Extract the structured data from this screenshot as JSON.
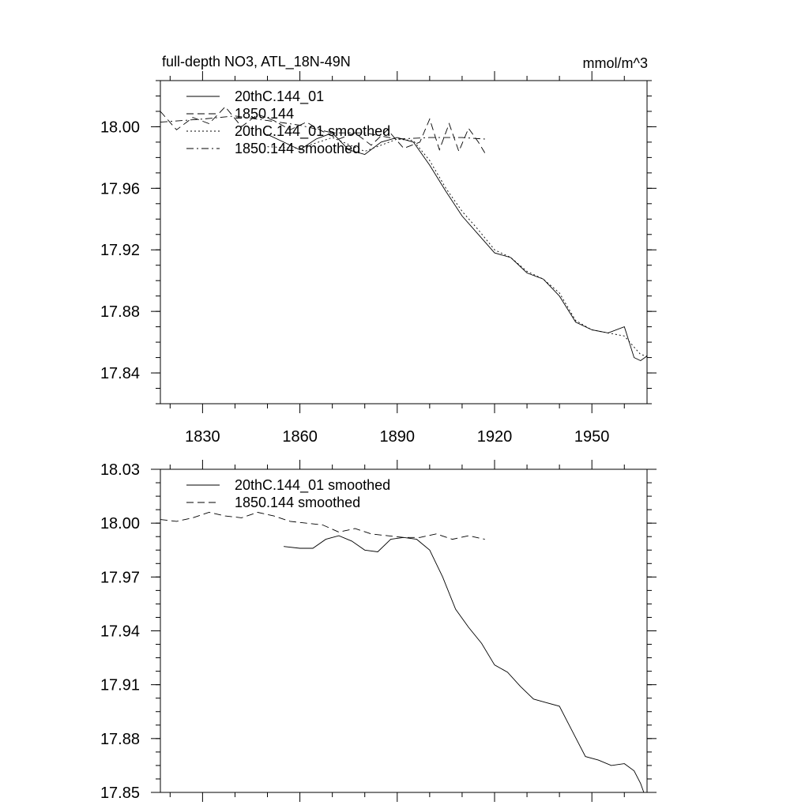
{
  "chart_data": [
    {
      "type": "line",
      "title": "full-depth NO3, ATL_18N-49N",
      "units": "mmol/m^3",
      "xlim": [
        1817,
        1967
      ],
      "ylim": [
        17.82,
        18.03
      ],
      "xticks": [
        1830,
        1860,
        1890,
        1920,
        1950
      ],
      "xtick_labels": [
        "1830",
        "1860",
        "1890",
        "1920",
        "1950"
      ],
      "yticks": [
        17.84,
        17.88,
        17.92,
        17.96,
        18.0
      ],
      "ytick_labels": [
        "17.84",
        "17.88",
        "17.92",
        "17.96",
        "18.00"
      ],
      "legend_position": "top-left",
      "series": [
        {
          "name": "20thC.144_01",
          "style": "solid",
          "x": [
            1850,
            1855,
            1860,
            1865,
            1870,
            1875,
            1880,
            1885,
            1890,
            1895,
            1900,
            1905,
            1910,
            1915,
            1920,
            1925,
            1930,
            1935,
            1940,
            1945,
            1950,
            1955,
            1960,
            1963,
            1965,
            1967
          ],
          "values": [
            17.995,
            17.99,
            17.985,
            17.992,
            17.996,
            17.985,
            17.982,
            17.99,
            17.993,
            17.99,
            17.975,
            17.958,
            17.942,
            17.93,
            17.918,
            17.915,
            17.905,
            17.901,
            17.89,
            17.873,
            17.868,
            17.866,
            17.87,
            17.85,
            17.848,
            17.851
          ]
        },
        {
          "name": "1850.144",
          "style": "dashed",
          "x": [
            1817,
            1822,
            1827,
            1832,
            1837,
            1842,
            1847,
            1852,
            1857,
            1862,
            1867,
            1872,
            1877,
            1882,
            1887,
            1892,
            1897,
            1900,
            1903,
            1906,
            1909,
            1912,
            1915,
            1917
          ],
          "values": [
            18.01,
            17.998,
            18.006,
            18.002,
            18.013,
            18.0,
            18.008,
            18.004,
            17.998,
            18.003,
            17.997,
            17.992,
            17.996,
            17.988,
            17.998,
            17.986,
            17.99,
            18.005,
            17.985,
            18.002,
            17.984,
            17.999,
            17.99,
            17.983
          ]
        },
        {
          "name": "20thC.144_01 smoothed",
          "style": "dotted",
          "x": [
            1850,
            1860,
            1870,
            1880,
            1890,
            1895,
            1900,
            1905,
            1910,
            1915,
            1920,
            1925,
            1930,
            1935,
            1940,
            1945,
            1950,
            1955,
            1960,
            1965,
            1967
          ],
          "values": [
            17.987,
            17.986,
            17.993,
            17.984,
            17.992,
            17.991,
            17.978,
            17.96,
            17.945,
            17.933,
            17.92,
            17.915,
            17.906,
            17.901,
            17.892,
            17.874,
            17.868,
            17.866,
            17.864,
            17.852,
            17.851
          ]
        },
        {
          "name": "1850.144 smoothed",
          "style": "dashdot",
          "x": [
            1817,
            1830,
            1840,
            1850,
            1860,
            1870,
            1880,
            1890,
            1900,
            1910,
            1917
          ],
          "values": [
            18.003,
            18.005,
            18.007,
            18.004,
            18.001,
            17.996,
            17.996,
            17.992,
            17.993,
            17.993,
            17.992
          ]
        }
      ]
    },
    {
      "type": "line",
      "title": "",
      "xlim": [
        1817,
        1967
      ],
      "ylim": [
        17.85,
        18.03
      ],
      "xticks": [
        1830,
        1860,
        1890,
        1920,
        1950
      ],
      "yticks": [
        17.85,
        17.88,
        17.91,
        17.94,
        17.97,
        18.0,
        18.03
      ],
      "ytick_labels": [
        "17.85",
        "17.88",
        "17.91",
        "17.94",
        "17.97",
        "18.00",
        "18.03"
      ],
      "legend_position": "top-left",
      "series": [
        {
          "name": "20thC.144_01 smoothed",
          "style": "solid",
          "x": [
            1855,
            1860,
            1864,
            1868,
            1872,
            1876,
            1880,
            1884,
            1888,
            1892,
            1896,
            1900,
            1904,
            1908,
            1912,
            1916,
            1920,
            1924,
            1928,
            1932,
            1936,
            1940,
            1944,
            1948,
            1952,
            1956,
            1960,
            1963,
            1965,
            1966
          ],
          "values": [
            17.987,
            17.986,
            17.986,
            17.991,
            17.993,
            17.99,
            17.985,
            17.984,
            17.991,
            17.992,
            17.991,
            17.985,
            17.97,
            17.952,
            17.942,
            17.933,
            17.921,
            17.917,
            17.909,
            17.902,
            17.9,
            17.898,
            17.884,
            17.87,
            17.868,
            17.865,
            17.866,
            17.862,
            17.855,
            17.85
          ]
        },
        {
          "name": "1850.144 smoothed",
          "style": "dashed",
          "x": [
            1817,
            1822,
            1827,
            1832,
            1837,
            1842,
            1847,
            1852,
            1857,
            1862,
            1867,
            1872,
            1877,
            1882,
            1887,
            1892,
            1897,
            1902,
            1907,
            1912,
            1917
          ],
          "values": [
            18.002,
            18.001,
            18.003,
            18.006,
            18.004,
            18.003,
            18.006,
            18.004,
            18.001,
            18.0,
            17.999,
            17.995,
            17.997,
            17.994,
            17.993,
            17.992,
            17.992,
            17.994,
            17.991,
            17.993,
            17.991
          ]
        }
      ]
    }
  ]
}
